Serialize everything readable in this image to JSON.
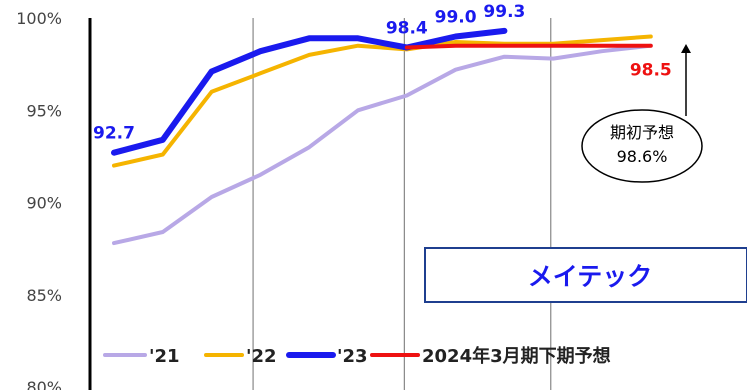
{
  "chart_data": {
    "type": "line",
    "title": "",
    "xlabel": "",
    "ylabel": "",
    "ylim": [
      80,
      100
    ],
    "y_ticks": [
      "80%",
      "85%",
      "90%",
      "95%",
      "100%"
    ],
    "x": [
      1,
      2,
      3,
      4,
      5,
      6,
      7,
      8,
      9,
      10,
      11,
      12
    ],
    "grid": "vertical quarter dividers",
    "legend_placement": "bottom",
    "series": [
      {
        "name": "'21",
        "color": "#b8a8e6",
        "width": 4,
        "values": [
          87.8,
          88.4,
          90.3,
          91.5,
          93.0,
          95.0,
          95.8,
          97.2,
          97.9,
          97.8,
          98.2,
          98.5
        ]
      },
      {
        "name": "'22",
        "color": "#f5b400",
        "width": 4,
        "values": [
          92.0,
          92.6,
          96.0,
          97.0,
          98.0,
          98.5,
          98.3,
          98.7,
          98.6,
          98.6,
          98.8,
          99.0
        ]
      },
      {
        "name": "'23",
        "color": "#1a1aee",
        "width": 6,
        "values": [
          92.7,
          93.4,
          97.1,
          98.2,
          98.9,
          98.9,
          98.4,
          99.0,
          99.3,
          null,
          null,
          null
        ]
      },
      {
        "name": "2024年3月期下期予想",
        "color": "#ee1111",
        "width": 4,
        "values": [
          null,
          null,
          null,
          null,
          null,
          null,
          98.4,
          98.5,
          98.5,
          98.5,
          98.5,
          98.5
        ]
      }
    ],
    "data_labels": [
      {
        "text": "92.7",
        "series": 2,
        "index": 0,
        "color": "#1a1aee"
      },
      {
        "text": "98.4",
        "series": 2,
        "index": 6,
        "color": "#1a1aee"
      },
      {
        "text": "99.0",
        "series": 2,
        "index": 7,
        "color": "#1a1aee"
      },
      {
        "text": "99.3",
        "series": 2,
        "index": 8,
        "color": "#1a1aee"
      },
      {
        "text": "98.5",
        "series": 3,
        "index": 11,
        "color": "#ee1111"
      }
    ],
    "annotation": {
      "line1": "期初予想",
      "line2": "98.6%",
      "value": 98.6
    },
    "company_label": "メイテック"
  }
}
